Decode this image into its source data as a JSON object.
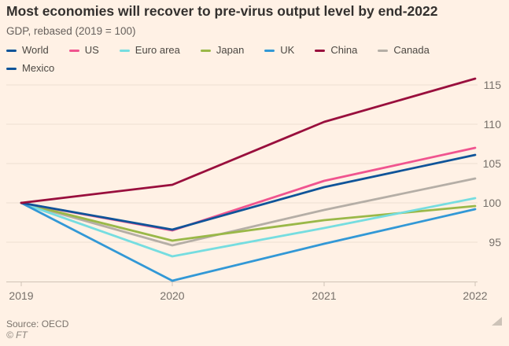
{
  "page": {
    "background": "#fff1e5"
  },
  "header": {
    "title": "Most economies will recover to pre-virus output level by end-2022",
    "subtitle": "GDP, rebased (2019 = 100)"
  },
  "legend": {
    "position": "top",
    "items": [
      {
        "label": "World",
        "color": "#0f5499"
      },
      {
        "label": "US",
        "color": "#f0548f"
      },
      {
        "label": "Euro area",
        "color": "#76dde0"
      },
      {
        "label": "Japan",
        "color": "#9ab848"
      },
      {
        "label": "UK",
        "color": "#3298d6"
      },
      {
        "label": "China",
        "color": "#990f3d"
      },
      {
        "label": "Canada",
        "color": "#b5aea6"
      },
      {
        "label": "Mexico",
        "color": "#0f5499"
      }
    ]
  },
  "chart_data": {
    "type": "line",
    "title": "Most economies will recover to pre-virus output level by end-2022",
    "subtitle": "GDP, rebased (2019 = 100)",
    "x": [
      2019,
      2020,
      2021,
      2022
    ],
    "x_tick_labels": [
      "2019",
      "2020",
      "2021",
      "2022"
    ],
    "y_ticks": [
      95,
      100,
      105,
      110,
      115
    ],
    "y_tick_labels": [
      "95",
      "100",
      "105",
      "110",
      "115"
    ],
    "ylim": [
      89,
      117
    ],
    "grid": "horizontal",
    "legend_position": "top",
    "y_axis_side": "right",
    "series": [
      {
        "name": "Canada",
        "color": "#b5aea6",
        "values": [
          100,
          94.6,
          99.1,
          103.1
        ]
      },
      {
        "name": "Japan",
        "color": "#9ab848",
        "values": [
          100,
          95.2,
          97.8,
          99.6
        ]
      },
      {
        "name": "Euro area",
        "color": "#76dde0",
        "values": [
          100,
          93.2,
          96.8,
          100.6
        ]
      },
      {
        "name": "UK",
        "color": "#3298d6",
        "values": [
          100,
          90.1,
          94.8,
          99.2
        ]
      },
      {
        "name": "US",
        "color": "#f0548f",
        "values": [
          100,
          96.5,
          102.8,
          107.0
        ]
      },
      {
        "name": "World",
        "color": "#0f5499",
        "values": [
          100,
          96.6,
          102.0,
          106.1
        ]
      },
      {
        "name": "China",
        "color": "#990f3d",
        "values": [
          100,
          102.3,
          110.3,
          115.8
        ]
      },
      {
        "name": "Mexico",
        "color": "#0f5499",
        "values": null,
        "line_visible": false
      }
    ],
    "colors": {
      "gridline": "#ecdfd1",
      "axis_line": "#cfc3b6",
      "tick_label": "#76706a"
    }
  },
  "footer": {
    "source": "Source: OECD",
    "copyright": "© FT"
  }
}
